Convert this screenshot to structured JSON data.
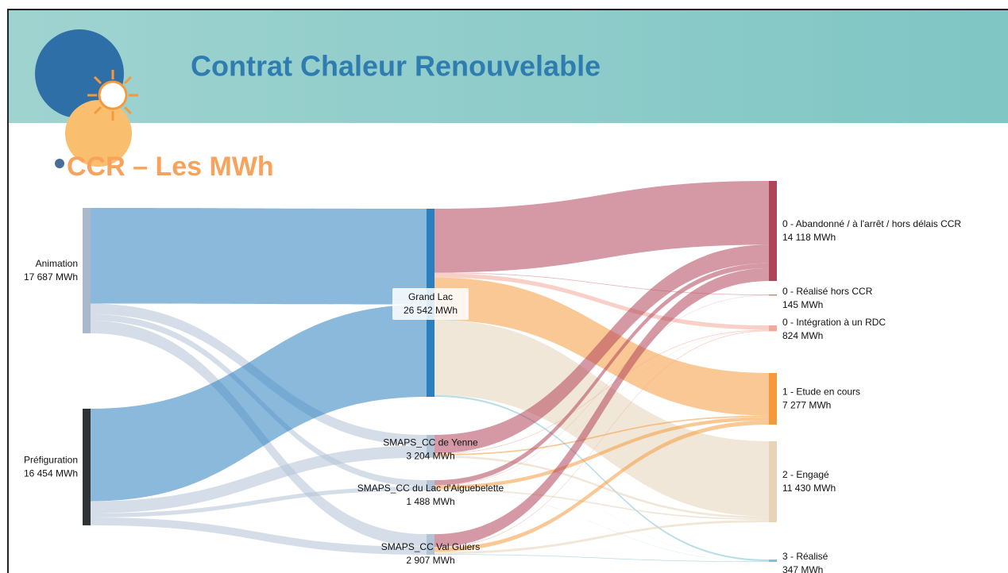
{
  "chart_data": {
    "type": "sankey",
    "title": "Contrat Chaleur Renouvelable",
    "subtitle": "CCR – Les MWh",
    "nodes": [
      {
        "name": "Animation",
        "value": 17687,
        "value_label": "17 687 MWh",
        "color": "#a9b9cb"
      },
      {
        "name": "Préfiguration",
        "value": 16454,
        "value_label": "16 454 MWh",
        "color": "#2f3336"
      },
      {
        "name": "Grand Lac",
        "value": 26542,
        "value_label": "26 542 MWh",
        "color": "#2a7fbf"
      },
      {
        "name": "SMAPS_CC de Yenne",
        "value": 3204,
        "value_label": "3 204 MWh",
        "color": "#b3c3d6"
      },
      {
        "name": "SMAPS_CC du Lac d'Aiguebelette",
        "value": 1488,
        "value_label": "1 488 MWh",
        "color": "#b3c3d6"
      },
      {
        "name": "SMAPS_CC Val Guiers",
        "value": 2907,
        "value_label": "2 907 MWh",
        "color": "#b3c3d6"
      },
      {
        "name": "0 - Abandonné / à l'arrêt / hors délais CCR",
        "value": 14118,
        "value_label": "14 118 MWh",
        "color": "#b0455a"
      },
      {
        "name": "0 - Réalisé hors CCR",
        "value": 145,
        "value_label": "145 MWh",
        "color": "#d97f86"
      },
      {
        "name": "0 - Intégration à un RDC",
        "value": 824,
        "value_label": "824 MWh",
        "color": "#f2a99a"
      },
      {
        "name": "1 - Etude en cours",
        "value": 7277,
        "value_label": "7 277 MWh",
        "color": "#f59a3c"
      },
      {
        "name": "2 - Engagé",
        "value": 11430,
        "value_label": "11 430 MWh",
        "color": "#e6d3b8"
      },
      {
        "name": "3 - Réalisé",
        "value": 347,
        "value_label": "347 MWh",
        "color": "#7cc3d2"
      }
    ],
    "links": [
      {
        "source": 0,
        "target": 2,
        "value": 13500
      },
      {
        "source": 0,
        "target": 3,
        "value": 1500
      },
      {
        "source": 0,
        "target": 4,
        "value": 900
      },
      {
        "source": 0,
        "target": 5,
        "value": 1787
      },
      {
        "source": 1,
        "target": 2,
        "value": 13042
      },
      {
        "source": 1,
        "target": 3,
        "value": 1704
      },
      {
        "source": 1,
        "target": 4,
        "value": 588
      },
      {
        "source": 1,
        "target": 5,
        "value": 1120
      },
      {
        "source": 2,
        "target": 6,
        "value": 9000
      },
      {
        "source": 2,
        "target": 7,
        "value": 100
      },
      {
        "source": 2,
        "target": 8,
        "value": 600
      },
      {
        "source": 2,
        "target": 9,
        "value": 6000
      },
      {
        "source": 2,
        "target": 10,
        "value": 10600
      },
      {
        "source": 2,
        "target": 11,
        "value": 242
      },
      {
        "source": 3,
        "target": 6,
        "value": 2600
      },
      {
        "source": 3,
        "target": 8,
        "value": 100
      },
      {
        "source": 3,
        "target": 9,
        "value": 200
      },
      {
        "source": 3,
        "target": 10,
        "value": 300
      },
      {
        "source": 3,
        "target": 11,
        "value": 4
      },
      {
        "source": 4,
        "target": 6,
        "value": 700
      },
      {
        "source": 4,
        "target": 7,
        "value": 45
      },
      {
        "source": 4,
        "target": 8,
        "value": 24
      },
      {
        "source": 4,
        "target": 9,
        "value": 500
      },
      {
        "source": 4,
        "target": 10,
        "value": 200
      },
      {
        "source": 4,
        "target": 11,
        "value": 19
      },
      {
        "source": 5,
        "target": 6,
        "value": 1818
      },
      {
        "source": 5,
        "target": 8,
        "value": 100
      },
      {
        "source": 5,
        "target": 9,
        "value": 577
      },
      {
        "source": 5,
        "target": 10,
        "value": 330
      },
      {
        "source": 5,
        "target": 11,
        "value": 82
      }
    ]
  }
}
